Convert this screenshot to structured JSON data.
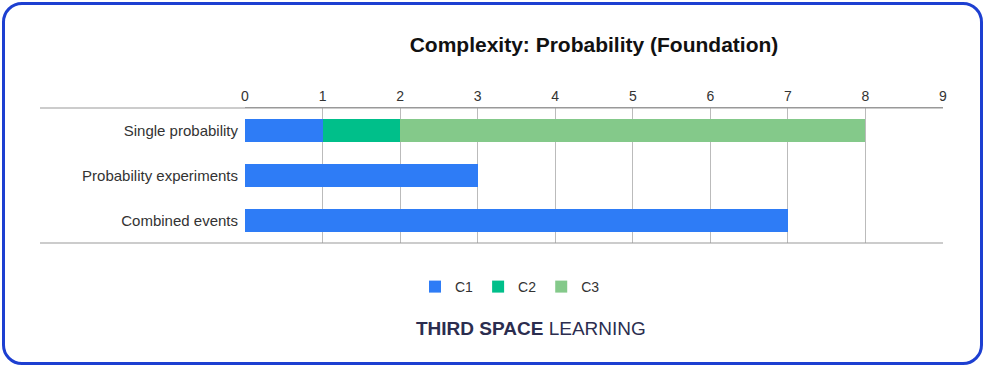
{
  "chart_data": {
    "type": "bar",
    "title": "Complexity: Probability (Foundation)",
    "orientation": "horizontal",
    "stacked": true,
    "categories": [
      "Single probability",
      "Probability experiments",
      "Combined events"
    ],
    "series": [
      {
        "name": "C1",
        "color": "#2e7cf6",
        "values": [
          1,
          3,
          7
        ]
      },
      {
        "name": "C2",
        "color": "#00bf8a",
        "values": [
          1,
          0,
          0
        ]
      },
      {
        "name": "C3",
        "color": "#84c98a",
        "values": [
          6,
          0,
          0
        ]
      }
    ],
    "xlim": [
      0,
      9
    ],
    "xticks": [
      0,
      1,
      2,
      3,
      4,
      5,
      6,
      7,
      8,
      9
    ],
    "grid": true,
    "legend": "bottom",
    "annotations": [
      "THIRD SPACE",
      "LEARNING"
    ]
  }
}
